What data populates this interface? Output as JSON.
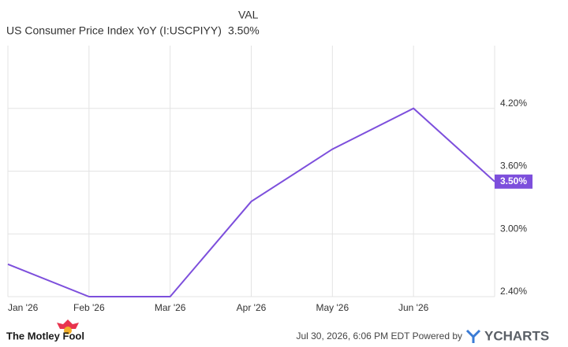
{
  "chart_data": {
    "type": "line",
    "header": {
      "column": "VAL",
      "value": "3.50%"
    },
    "categories": [
      "Jan '26",
      "Feb '26",
      "Mar '26",
      "Apr '26",
      "May '26",
      "Jun '26",
      null
    ],
    "series": [
      {
        "name": "US Consumer Price Index YoY (I:USCPIYY)",
        "color": "#7d4fdc",
        "values": [
          2.71,
          2.4,
          2.4,
          3.31,
          3.81,
          4.2,
          3.5
        ],
        "value_labels": [
          null,
          null,
          null,
          null,
          null,
          null,
          "3.50%"
        ]
      }
    ],
    "ylim": [
      2.4,
      4.8
    ],
    "yticks": [
      {
        "value": 2.4,
        "label": "2.40%"
      },
      {
        "value": 3.0,
        "label": "3.00%"
      },
      {
        "value": 3.6,
        "label": "3.60%"
      },
      {
        "value": 4.2,
        "label": "4.20%"
      }
    ],
    "grid": true,
    "brand": "The Motley Fool",
    "source_note": "Jul 30, 2026, 6:06 PM EDT Powered by",
    "provider": "YCHARTS"
  }
}
